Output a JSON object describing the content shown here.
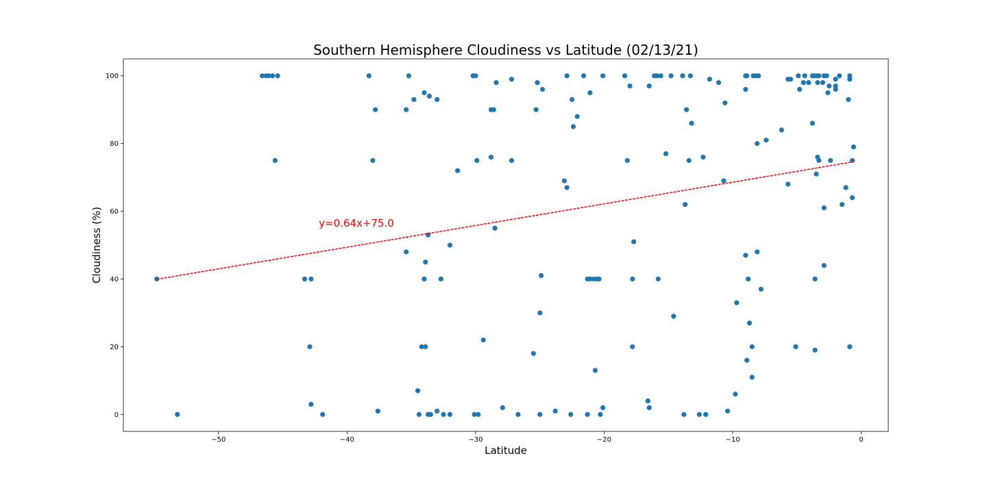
{
  "chart_data": {
    "type": "scatter",
    "title": "Southern Hemisphere Cloudiness vs Latitude (02/13/21)",
    "xlabel": "Latitude",
    "ylabel": "Cloudiness (%)",
    "xlim": [
      -57.4,
      2.1
    ],
    "ylim": [
      -5,
      105
    ],
    "xticks": [
      -50,
      -40,
      -30,
      -20,
      -10,
      0
    ],
    "yticks": [
      0,
      20,
      40,
      60,
      80,
      100
    ],
    "xtick_labels": [
      "−50",
      "−40",
      "−30",
      "−20",
      "−10",
      "0"
    ],
    "ytick_labels": [
      "0",
      "20",
      "40",
      "60",
      "80",
      "100"
    ],
    "grid": false,
    "point_color": "#1f77b4",
    "series": [
      {
        "points": [
          [
            -54.8,
            40
          ],
          [
            -53.2,
            0
          ],
          [
            -46.6,
            100
          ],
          [
            -46.3,
            100
          ],
          [
            -46.1,
            100
          ],
          [
            -45.8,
            100
          ],
          [
            -45.4,
            100
          ],
          [
            -45.6,
            75
          ],
          [
            -43.3,
            40
          ],
          [
            -42.8,
            40
          ],
          [
            -42.9,
            20
          ],
          [
            -42.8,
            3
          ],
          [
            -41.9,
            0
          ],
          [
            -38.3,
            100
          ],
          [
            -37.8,
            90
          ],
          [
            -38.0,
            75
          ],
          [
            -37.6,
            1
          ],
          [
            -35.2,
            100
          ],
          [
            -35.4,
            90
          ],
          [
            -34.8,
            93
          ],
          [
            -34.0,
            95
          ],
          [
            -33.6,
            94
          ],
          [
            -33.0,
            93
          ],
          [
            -35.4,
            48
          ],
          [
            -33.7,
            53
          ],
          [
            -33.9,
            45
          ],
          [
            -34.0,
            40
          ],
          [
            -32.7,
            40
          ],
          [
            -32.0,
            50
          ],
          [
            -34.2,
            20
          ],
          [
            -33.9,
            20
          ],
          [
            -34.5,
            7
          ],
          [
            -34.4,
            0
          ],
          [
            -33.7,
            0
          ],
          [
            -33.5,
            0
          ],
          [
            -33.0,
            1
          ],
          [
            -32.5,
            0
          ],
          [
            -32.0,
            0
          ],
          [
            -31.4,
            72
          ],
          [
            -30.2,
            100
          ],
          [
            -30.0,
            100
          ],
          [
            -29.9,
            75
          ],
          [
            -30.1,
            0
          ],
          [
            -29.8,
            0
          ],
          [
            -29.4,
            22
          ],
          [
            -28.8,
            90
          ],
          [
            -28.6,
            90
          ],
          [
            -28.8,
            76
          ],
          [
            -28.4,
            98
          ],
          [
            -28.5,
            55
          ],
          [
            -27.9,
            2
          ],
          [
            -27.2,
            99
          ],
          [
            -27.2,
            75
          ],
          [
            -26.7,
            0
          ],
          [
            -25.2,
            98
          ],
          [
            -24.8,
            96
          ],
          [
            -25.3,
            90
          ],
          [
            -24.9,
            41
          ],
          [
            -25.0,
            30
          ],
          [
            -25.5,
            18
          ],
          [
            -25.0,
            0
          ],
          [
            -23.8,
            1
          ],
          [
            -23.1,
            69
          ],
          [
            -22.9,
            67
          ],
          [
            -22.9,
            100
          ],
          [
            -22.5,
            93
          ],
          [
            -22.1,
            88
          ],
          [
            -22.4,
            85
          ],
          [
            -22.6,
            0
          ],
          [
            -21.6,
            100
          ],
          [
            -21.1,
            95
          ],
          [
            -21.3,
            40
          ],
          [
            -21.1,
            40
          ],
          [
            -20.8,
            40
          ],
          [
            -20.6,
            40
          ],
          [
            -20.4,
            40
          ],
          [
            -20.7,
            13
          ],
          [
            -21.3,
            0
          ],
          [
            -20.3,
            0
          ],
          [
            -20.1,
            2
          ],
          [
            -20.1,
            100
          ],
          [
            -18.4,
            100
          ],
          [
            -18.0,
            97
          ],
          [
            -18.2,
            75
          ],
          [
            -17.7,
            51
          ],
          [
            -17.8,
            40
          ],
          [
            -17.8,
            20
          ],
          [
            -16.6,
            4
          ],
          [
            -16.5,
            2
          ],
          [
            -16.5,
            97
          ],
          [
            -16.1,
            100
          ],
          [
            -15.9,
            100
          ],
          [
            -15.6,
            100
          ],
          [
            -15.2,
            77
          ],
          [
            -15.8,
            40
          ],
          [
            -14.8,
            100
          ],
          [
            -14.6,
            29
          ],
          [
            -13.9,
            100
          ],
          [
            -13.6,
            90
          ],
          [
            -13.7,
            62
          ],
          [
            -13.3,
            100
          ],
          [
            -13.4,
            75
          ],
          [
            -13.2,
            86
          ],
          [
            -13.8,
            0
          ],
          [
            -12.6,
            0
          ],
          [
            -12.1,
            0
          ],
          [
            -12.3,
            76
          ],
          [
            -11.8,
            99
          ],
          [
            -11.1,
            98
          ],
          [
            -10.6,
            92
          ],
          [
            -10.7,
            69
          ],
          [
            -10.4,
            1
          ],
          [
            -9.7,
            33
          ],
          [
            -9.8,
            6
          ],
          [
            -9.0,
            100
          ],
          [
            -8.9,
            100
          ],
          [
            -9.0,
            96
          ],
          [
            -9.0,
            47
          ],
          [
            -8.8,
            40
          ],
          [
            -8.7,
            27
          ],
          [
            -8.9,
            16
          ],
          [
            -8.5,
            20
          ],
          [
            -8.5,
            11
          ],
          [
            -8.4,
            100
          ],
          [
            -8.2,
            100
          ],
          [
            -8.0,
            100
          ],
          [
            -8.1,
            80
          ],
          [
            -8.1,
            48
          ],
          [
            -7.8,
            37
          ],
          [
            -7.4,
            81
          ],
          [
            -6.2,
            84
          ],
          [
            -5.7,
            99
          ],
          [
            -5.5,
            99
          ],
          [
            -5.7,
            68
          ],
          [
            -5.1,
            20
          ],
          [
            -4.9,
            100
          ],
          [
            -4.8,
            96
          ],
          [
            -4.5,
            98
          ],
          [
            -4.4,
            100
          ],
          [
            -4.1,
            98
          ],
          [
            -3.8,
            100
          ],
          [
            -3.7,
            100
          ],
          [
            -3.5,
            100
          ],
          [
            -3.4,
            98
          ],
          [
            -3.3,
            100
          ],
          [
            -3.8,
            86
          ],
          [
            -3.4,
            76
          ],
          [
            -3.3,
            75
          ],
          [
            -3.5,
            71
          ],
          [
            -3.6,
            40
          ],
          [
            -3.6,
            19
          ],
          [
            -3.0,
            98
          ],
          [
            -2.9,
            100
          ],
          [
            -2.7,
            100
          ],
          [
            -2.5,
            97
          ],
          [
            -2.6,
            95
          ],
          [
            -2.4,
            75
          ],
          [
            -2.9,
            61
          ],
          [
            -2.9,
            44
          ],
          [
            -2.0,
            99
          ],
          [
            -2.0,
            97
          ],
          [
            -2.0,
            96
          ],
          [
            -1.7,
            100
          ],
          [
            -1.5,
            62
          ],
          [
            -1.2,
            67
          ],
          [
            -0.9,
            100
          ],
          [
            -0.9,
            99
          ],
          [
            -1.0,
            93
          ],
          [
            -0.7,
            75
          ],
          [
            -0.7,
            64
          ],
          [
            -0.6,
            79
          ],
          [
            -0.9,
            20
          ]
        ]
      }
    ],
    "regression": {
      "slope": 0.64,
      "intercept": 75.0,
      "x_range": [
        -54.8,
        -0.6
      ],
      "color": "#ff0000",
      "style": "dashed"
    },
    "annotation": {
      "text": "y=0.64x+75.0",
      "x": -42.2,
      "y": 55.5,
      "color": "#ff0000"
    }
  }
}
